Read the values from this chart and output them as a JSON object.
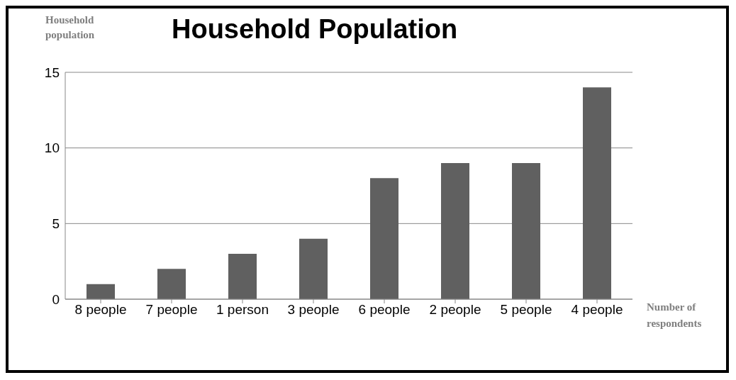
{
  "chart_data": {
    "type": "bar",
    "title": "Household Population",
    "ylabel": "Household population",
    "xlabel": "Number of respondents",
    "categories": [
      "8 people",
      "7 people",
      "1 person",
      "3 people",
      "6 people",
      "2 people",
      "5 people",
      "4 people"
    ],
    "values": [
      1,
      2,
      3,
      4,
      8,
      9,
      9,
      14
    ],
    "color": "#606060",
    "ylim": [
      0,
      15
    ],
    "yticks": [
      0,
      5,
      10,
      15
    ],
    "grid": "y"
  }
}
